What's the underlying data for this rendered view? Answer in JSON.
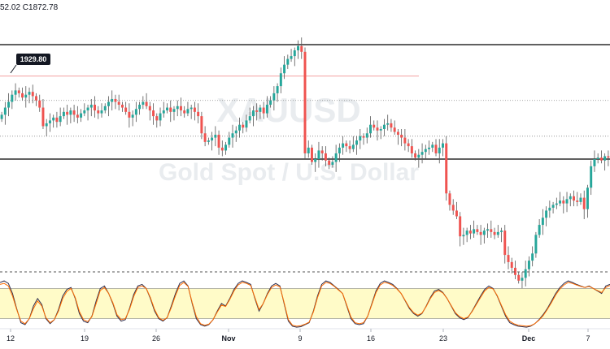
{
  "header": {
    "ohlc_text": "52.02  C1872.78"
  },
  "watermark": {
    "symbol": "XAUUSD",
    "description": "Gold Spot / U.S. Dollar"
  },
  "annotation": {
    "price_label": "1929.80"
  },
  "colors": {
    "up": "#26a69a",
    "down": "#ef5350",
    "wick": "#555555",
    "resistance_line": "#f4a1a1",
    "stoch_k": "#2f2f4f",
    "stoch_d": "#ff6d00",
    "stoch_band": "#fffbc8"
  },
  "chart_data": [
    {
      "type": "candlestick",
      "title": "",
      "x_tick_labels": [
        "12",
        "19",
        "26",
        "Nov",
        "9",
        "16",
        "23",
        "Dec",
        "7"
      ],
      "ylim": [
        1760,
        1965
      ],
      "levels": [
        1952,
        1930,
        1913,
        1888,
        1872
      ],
      "closes": [
        1903,
        1908,
        1912,
        1917,
        1920,
        1918,
        1915,
        1917,
        1919,
        1916,
        1913,
        1908,
        1895,
        1897,
        1899,
        1901,
        1898,
        1902,
        1905,
        1903,
        1906,
        1903,
        1901,
        1904,
        1906,
        1908,
        1910,
        1906,
        1904,
        1906,
        1909,
        1912,
        1914,
        1912,
        1910,
        1908,
        1905,
        1901,
        1903,
        1907,
        1910,
        1912,
        1909,
        1906,
        1902,
        1899,
        1904,
        1906,
        1908,
        1905,
        1907,
        1909,
        1906,
        1904,
        1907,
        1908,
        1905,
        1902,
        1890,
        1884,
        1885,
        1887,
        1889,
        1880,
        1878,
        1882,
        1887,
        1890,
        1892,
        1896,
        1894,
        1899,
        1902,
        1906,
        1905,
        1908,
        1904,
        1910,
        1913,
        1918,
        1923,
        1932,
        1938,
        1942,
        1944,
        1948,
        1951,
        1947,
        1876,
        1880,
        1870,
        1872,
        1878,
        1876,
        1871,
        1868,
        1870,
        1876,
        1880,
        1883,
        1881,
        1879,
        1882,
        1885,
        1888,
        1887,
        1890,
        1896,
        1894,
        1892,
        1893,
        1896,
        1897,
        1894,
        1891,
        1889,
        1887,
        1883,
        1881,
        1876,
        1873,
        1875,
        1877,
        1879,
        1880,
        1882,
        1876,
        1880,
        1883,
        1848,
        1840,
        1836,
        1832,
        1818,
        1819,
        1822,
        1820,
        1823,
        1821,
        1819,
        1822,
        1823,
        1821,
        1819,
        1821,
        1822,
        1805,
        1800,
        1796,
        1791,
        1787,
        1789,
        1795,
        1801,
        1806,
        1819,
        1826,
        1831,
        1836,
        1838,
        1840,
        1841,
        1843,
        1841,
        1844,
        1846,
        1843,
        1842,
        1845,
        1837,
        1852,
        1867,
        1872,
        1873,
        1871,
        1874,
        1873
      ]
    },
    {
      "type": "line",
      "title": "",
      "ylim": [
        0,
        100
      ],
      "levels": [
        80,
        20
      ],
      "series": [
        {
          "values": [
            92,
            95,
            90,
            70,
            40,
            12,
            8,
            20,
            45,
            60,
            48,
            20,
            10,
            18,
            38,
            65,
            78,
            82,
            60,
            30,
            15,
            12,
            25,
            55,
            80,
            85,
            70,
            50,
            25,
            15,
            18,
            40,
            68,
            85,
            88,
            80,
            60,
            35,
            20,
            15,
            22,
            45,
            70,
            90,
            95,
            85,
            50,
            20,
            8,
            5,
            8,
            18,
            35,
            50,
            45,
            60,
            78,
            90,
            95,
            92,
            88,
            60,
            35,
            50,
            70,
            85,
            90,
            85,
            50,
            15,
            5,
            3,
            4,
            8,
            12,
            35,
            65,
            88,
            95,
            92,
            85,
            78,
            70,
            45,
            20,
            10,
            8,
            10,
            25,
            50,
            75,
            90,
            95,
            92,
            88,
            80,
            70,
            55,
            40,
            30,
            25,
            30,
            45,
            62,
            75,
            78,
            72,
            60,
            45,
            30,
            22,
            18,
            22,
            35,
            50,
            65,
            78,
            85,
            80,
            65,
            45,
            25,
            12,
            8,
            5,
            4,
            3,
            5,
            10,
            18,
            28,
            40,
            55,
            70,
            82,
            90,
            95,
            92,
            88,
            85,
            82,
            85,
            80,
            75,
            70,
            85,
            88
          ]
        },
        {
          "values": [
            88,
            90,
            85,
            65,
            38,
            15,
            10,
            20,
            40,
            55,
            45,
            22,
            12,
            18,
            35,
            60,
            74,
            80,
            62,
            34,
            18,
            14,
            24,
            50,
            76,
            82,
            70,
            52,
            28,
            18,
            20,
            38,
            64,
            82,
            85,
            80,
            62,
            38,
            22,
            17,
            22,
            42,
            66,
            86,
            92,
            84,
            52,
            24,
            10,
            7,
            9,
            18,
            33,
            47,
            44,
            58,
            75,
            87,
            92,
            90,
            86,
            62,
            38,
            50,
            68,
            82,
            87,
            83,
            52,
            18,
            7,
            5,
            6,
            9,
            13,
            33,
            62,
            85,
            92,
            90,
            84,
            77,
            70,
            47,
            23,
            12,
            10,
            12,
            25,
            48,
            72,
            87,
            92,
            90,
            86,
            79,
            70,
            56,
            42,
            32,
            27,
            31,
            44,
            60,
            72,
            76,
            71,
            60,
            46,
            32,
            24,
            20,
            23,
            34,
            48,
            62,
            75,
            82,
            79,
            66,
            47,
            28,
            15,
            10,
            7,
            6,
            5,
            6,
            10,
            17,
            26,
            38,
            52,
            67,
            79,
            87,
            92,
            90,
            87,
            84,
            82,
            84,
            80,
            76,
            72,
            82,
            86
          ]
        }
      ]
    }
  ]
}
